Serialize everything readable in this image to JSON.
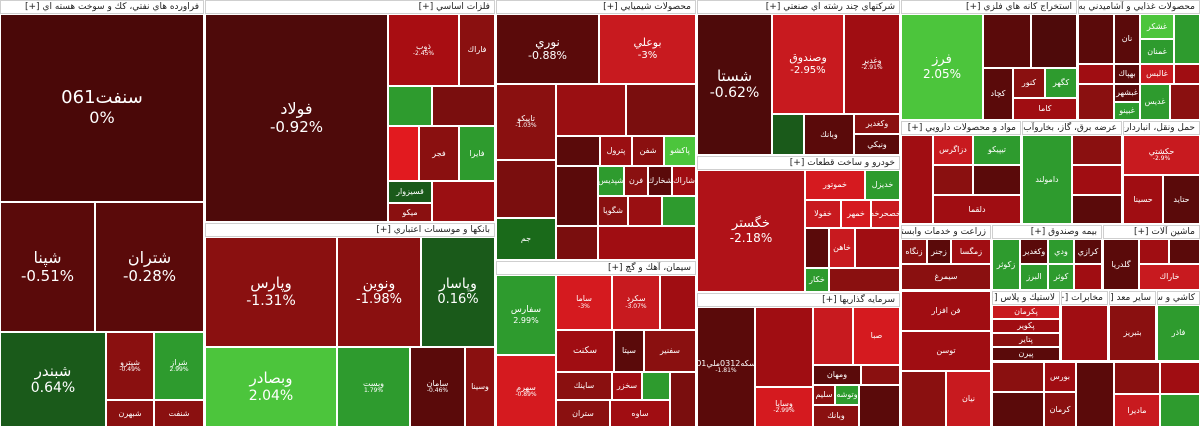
{
  "colors": {
    "deep_red": "#5a0a0a",
    "red": "#a00d12",
    "bright_red": "#d51a1f",
    "dark_green": "#1a6a1a",
    "green": "#2e9b2e",
    "bright_green": "#4cc53c"
  },
  "sectors": [
    {
      "id": "oil",
      "label": "فراورده هاي نفتي، كك و سوخت هسته اي [+]"
    },
    {
      "id": "metals",
      "label": "فلزات اساسي [+]"
    },
    {
      "id": "banks",
      "label": "بانكها و موسسات اعتباري [+]"
    },
    {
      "id": "chem",
      "label": "محصولات شيميايي [+]"
    },
    {
      "id": "cement",
      "label": "سيمان، آهك و گچ [+]"
    },
    {
      "id": "multi",
      "label": "شركتهاي چند رشته اي صنعتي [+]"
    },
    {
      "id": "auto",
      "label": "خودرو و ساخت قطعات [+]"
    },
    {
      "id": "invest",
      "label": "سرمايه گذاريها [+]"
    },
    {
      "id": "mining",
      "label": "استخراج كانه هاي فلزي [+]"
    },
    {
      "id": "food",
      "label": "محصولات غذايي و آشاميدني به جز قند [+]"
    },
    {
      "id": "pharma",
      "label": "مواد و محصولات دارويي [+]"
    },
    {
      "id": "utility",
      "label": "عرضه برق، گاز، بخاروآب گرم [+]"
    },
    {
      "id": "transport",
      "label": "حمل ونقل، انبارداري و [+]"
    },
    {
      "id": "agri",
      "label": "زراعت و خدمات وابسته [+]"
    },
    {
      "id": "insurance",
      "label": "بيمه وصندوق [+]"
    },
    {
      "id": "machinery",
      "label": "ماشين آلات [+]"
    },
    {
      "id": "rubber",
      "label": "لاستيك و پلاس [+]"
    },
    {
      "id": "telecom",
      "label": "مخابرات [+]"
    },
    {
      "id": "other",
      "label": "ساير معد [+]"
    },
    {
      "id": "stone",
      "label": "كاشي و سرا [+]"
    }
  ],
  "tiles": [
    {
      "name": "سنفت061",
      "pct": "0%"
    },
    {
      "name": "شپنا",
      "pct": "-0.51%"
    },
    {
      "name": "شتران",
      "pct": "-0.28%"
    },
    {
      "name": "شبندر",
      "pct": "0.64%"
    },
    {
      "name": "شپترو",
      "pct": "-0.49%"
    },
    {
      "name": "شراز",
      "pct": "2.99%"
    },
    {
      "name": "شبهرن",
      "pct": ""
    },
    {
      "name": "شنفت",
      "pct": ""
    },
    {
      "name": "فولاد",
      "pct": "-0.92%"
    },
    {
      "name": "ذوب",
      "pct": "-2.45%"
    },
    {
      "name": "فاراك",
      "pct": ""
    },
    {
      "name": "قسيزوار",
      "pct": ""
    },
    {
      "name": "ميكو",
      "pct": ""
    },
    {
      "name": "فجر",
      "pct": ""
    },
    {
      "name": "فايرا",
      "pct": ""
    },
    {
      "name": "وپارس",
      "pct": "-1.31%"
    },
    {
      "name": "ونوين",
      "pct": "-1.98%"
    },
    {
      "name": "وپاسار",
      "pct": "0.16%"
    },
    {
      "name": "وبصادر",
      "pct": "2.04%"
    },
    {
      "name": "وبست",
      "pct": "1.79%"
    },
    {
      "name": "سامان",
      "pct": "-0.46%"
    },
    {
      "name": "وسينا",
      "pct": ""
    },
    {
      "name": "نوري",
      "pct": "-0.88%"
    },
    {
      "name": "بوعلي",
      "pct": "-3%"
    },
    {
      "name": "تاپيكو",
      "pct": "-1.03%"
    },
    {
      "name": "پترول",
      "pct": ""
    },
    {
      "name": "شفن",
      "pct": ""
    },
    {
      "name": "پاكشو",
      "pct": ""
    },
    {
      "name": "جم",
      "pct": ""
    },
    {
      "name": "شپديس",
      "pct": ""
    },
    {
      "name": "فرن",
      "pct": ""
    },
    {
      "name": "شاراك",
      "pct": ""
    },
    {
      "name": "شگويا",
      "pct": ""
    },
    {
      "name": "شخارك",
      "pct": ""
    },
    {
      "name": "سفارس",
      "pct": "2.99%"
    },
    {
      "name": "ساما",
      "pct": "-3%"
    },
    {
      "name": "سكرد",
      "pct": "-3.07%"
    },
    {
      "name": "سكنت",
      "pct": ""
    },
    {
      "name": "سيتا",
      "pct": ""
    },
    {
      "name": "سفنير",
      "pct": ""
    },
    {
      "name": "ساينك",
      "pct": ""
    },
    {
      "name": "ساوه",
      "pct": ""
    },
    {
      "name": "سخزر",
      "pct": ""
    },
    {
      "name": "ستران",
      "pct": ""
    },
    {
      "name": "سهرم",
      "pct": "-0.89%"
    },
    {
      "name": "شستا",
      "pct": "-0.62%"
    },
    {
      "name": "وصندوق",
      "pct": "-2.95%"
    },
    {
      "name": "وغدير",
      "pct": "-2.91%"
    },
    {
      "name": "وكغدير",
      "pct": ""
    },
    {
      "name": "وبانك",
      "pct": ""
    },
    {
      "name": "ونيكي",
      "pct": ""
    },
    {
      "name": "خگستر",
      "pct": "-2.18%"
    },
    {
      "name": "خموتور",
      "pct": ""
    },
    {
      "name": "خديزل",
      "pct": ""
    },
    {
      "name": "خفولا",
      "pct": ""
    },
    {
      "name": "خمهر",
      "pct": ""
    },
    {
      "name": "خصحرخه",
      "pct": ""
    },
    {
      "name": "خكار",
      "pct": ""
    },
    {
      "name": "ختوقا",
      "pct": ""
    },
    {
      "name": "خاهن",
      "pct": ""
    },
    {
      "name": "سكه0312ملي01",
      "pct": "-1.81%"
    },
    {
      "name": "صبا",
      "pct": ""
    },
    {
      "name": "ومهان",
      "pct": ""
    },
    {
      "name": "وبانك",
      "pct": ""
    },
    {
      "name": "سليم",
      "pct": ""
    },
    {
      "name": "وتوشه",
      "pct": ""
    },
    {
      "name": "وساپا",
      "pct": "-2.99%"
    },
    {
      "name": "فرز",
      "pct": "2.05%"
    },
    {
      "name": "كچاد",
      "pct": ""
    },
    {
      "name": "كنور",
      "pct": ""
    },
    {
      "name": "كاما",
      "pct": ""
    },
    {
      "name": "كگهر",
      "pct": ""
    },
    {
      "name": "نان",
      "pct": ""
    },
    {
      "name": "غشكر",
      "pct": ""
    },
    {
      "name": "غالبس",
      "pct": ""
    },
    {
      "name": "غمنان",
      "pct": ""
    },
    {
      "name": "بهپاك",
      "pct": ""
    },
    {
      "name": "غبشهر",
      "pct": ""
    },
    {
      "name": "غبينو",
      "pct": ""
    },
    {
      "name": "غديس",
      "pct": ""
    },
    {
      "name": "دلقما",
      "pct": ""
    },
    {
      "name": "دزاگرس",
      "pct": ""
    },
    {
      "name": "تيپيكو",
      "pct": ""
    },
    {
      "name": "دامولند",
      "pct": ""
    },
    {
      "name": "حكشتي",
      "pct": "-2.9%"
    },
    {
      "name": "حتايد",
      "pct": ""
    },
    {
      "name": "حسينا",
      "pct": ""
    },
    {
      "name": "زكوثر",
      "pct": ""
    },
    {
      "name": "زمگسا",
      "pct": ""
    },
    {
      "name": "سيمرغ",
      "pct": ""
    },
    {
      "name": "زنگاه",
      "pct": ""
    },
    {
      "name": "زجنر",
      "pct": ""
    },
    {
      "name": "كوثر",
      "pct": ""
    },
    {
      "name": "البرز",
      "pct": ""
    },
    {
      "name": "وكغدير",
      "pct": ""
    },
    {
      "name": "ودي",
      "pct": ""
    },
    {
      "name": "گلدريا",
      "pct": ""
    },
    {
      "name": "كرازي",
      "pct": ""
    },
    {
      "name": "فن افزار",
      "pct": ""
    },
    {
      "name": "توسن",
      "pct": ""
    },
    {
      "name": "پكرمان",
      "pct": ""
    },
    {
      "name": "پكوير",
      "pct": ""
    },
    {
      "name": "پتاير",
      "pct": ""
    },
    {
      "name": "پيرن",
      "pct": ""
    },
    {
      "name": "بورس",
      "pct": ""
    },
    {
      "name": "كرمان",
      "pct": ""
    },
    {
      "name": "نيان",
      "pct": ""
    },
    {
      "name": "ماديرا",
      "pct": ""
    },
    {
      "name": "بتبريز",
      "pct": ""
    },
    {
      "name": "فاذر",
      "pct": ""
    },
    {
      "name": "خاراك",
      "pct": ""
    }
  ]
}
